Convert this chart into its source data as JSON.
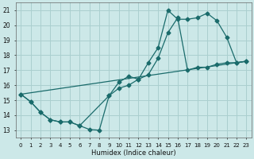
{
  "xlabel": "Humidex (Indice chaleur)",
  "xlim": [
    -0.5,
    23.5
  ],
  "ylim": [
    12.5,
    21.5
  ],
  "xticks": [
    0,
    1,
    2,
    3,
    4,
    5,
    6,
    7,
    8,
    9,
    10,
    11,
    12,
    13,
    14,
    15,
    16,
    17,
    18,
    19,
    20,
    21,
    22,
    23
  ],
  "yticks": [
    13,
    14,
    15,
    16,
    17,
    18,
    19,
    20,
    21
  ],
  "bg_color": "#cce8e8",
  "line_color": "#1a6b6b",
  "grid_color": "#aacfcf",
  "line1_x": [
    0,
    1,
    2,
    3,
    4,
    5,
    6,
    7,
    8,
    9,
    10,
    11,
    12,
    13,
    14,
    15,
    16,
    17,
    18,
    19,
    20,
    21,
    22,
    23
  ],
  "line1_y": [
    15.4,
    14.9,
    14.2,
    13.7,
    13.55,
    13.55,
    13.3,
    13.05,
    13.0,
    15.3,
    16.2,
    16.6,
    16.4,
    17.5,
    18.5,
    21.0,
    20.4,
    20.4,
    20.5,
    20.8,
    20.3,
    19.2,
    17.5,
    17.6
  ],
  "line2_x": [
    0,
    1,
    2,
    3,
    4,
    5,
    6,
    9,
    10,
    11,
    12,
    13,
    14,
    15,
    16,
    17,
    18,
    19,
    20,
    21,
    22,
    23
  ],
  "line2_y": [
    15.4,
    14.9,
    14.2,
    13.7,
    13.55,
    13.55,
    13.3,
    15.3,
    15.8,
    16.0,
    16.4,
    16.7,
    17.8,
    19.5,
    20.5,
    17.0,
    17.2,
    17.2,
    17.4,
    17.5,
    17.5,
    17.6
  ],
  "line3_x": [
    0,
    23
  ],
  "line3_y": [
    15.4,
    17.6
  ]
}
